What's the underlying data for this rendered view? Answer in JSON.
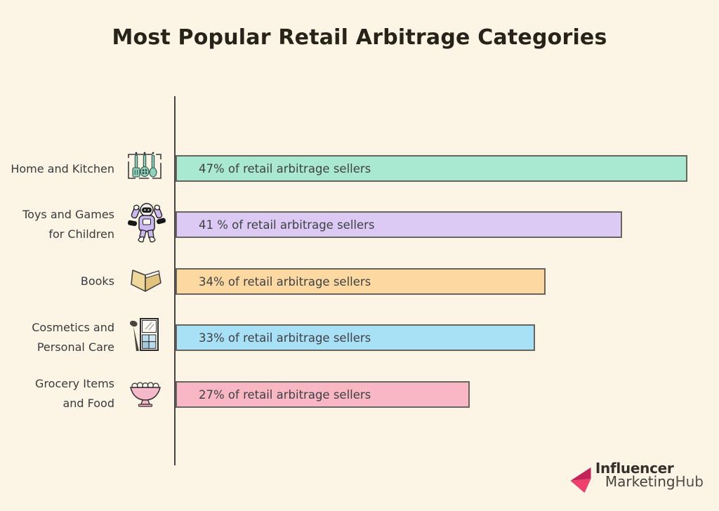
{
  "page": {
    "background": "#fcf5e6"
  },
  "title": "Most Popular Retail Arbitrage Categories",
  "chart_data": {
    "type": "bar",
    "orientation": "horizontal",
    "title": "Most Popular Retail Arbitrage Categories",
    "xlabel": "",
    "ylabel": "",
    "xlim": [
      0,
      50
    ],
    "grid": false,
    "legend": false,
    "unit": "% of retail arbitrage sellers",
    "categories": [
      "Home and Kitchen",
      "Toys and Games for Children",
      "Books",
      "Cosmetics and Personal Care",
      "Grocery Items and Food"
    ],
    "values": [
      47,
      41,
      34,
      33,
      27
    ],
    "rows": [
      {
        "label_line1": "Home and Kitchen",
        "value": 47,
        "bar_label": "47% of retail arbitrage sellers",
        "bar_color": "#aae9d1",
        "icon": "kitchen-utensils-icon"
      },
      {
        "label_line1": "Toys and Games",
        "label_line2": "for Children",
        "value": 41,
        "bar_label": "41 % of retail arbitrage sellers",
        "bar_color": "#dccaf5",
        "icon": "toy-robot-icon"
      },
      {
        "label_line1": "Books",
        "value": 34,
        "bar_label": "34% of retail arbitrage sellers",
        "bar_color": "#fcd9a0",
        "icon": "open-book-icon"
      },
      {
        "label_line1": "Cosmetics and",
        "label_line2": "Personal Care",
        "value": 33,
        "bar_label": "33% of retail arbitrage sellers",
        "bar_color": "#a8e0f6",
        "icon": "cosmetics-palette-icon"
      },
      {
        "label_line1": "Grocery Items",
        "label_line2": "and Food",
        "value": 27,
        "bar_label": "27% of retail arbitrage sellers",
        "bar_color": "#f9b6c3",
        "icon": "fruit-bowl-icon"
      }
    ]
  },
  "footer": {
    "brand_line1": "Influencer",
    "brand_line2_part1": "Marketing",
    "brand_line2_part2": "Hub",
    "arrow_color_dark": "#c32457",
    "arrow_color_bright": "#ee3f6e"
  }
}
